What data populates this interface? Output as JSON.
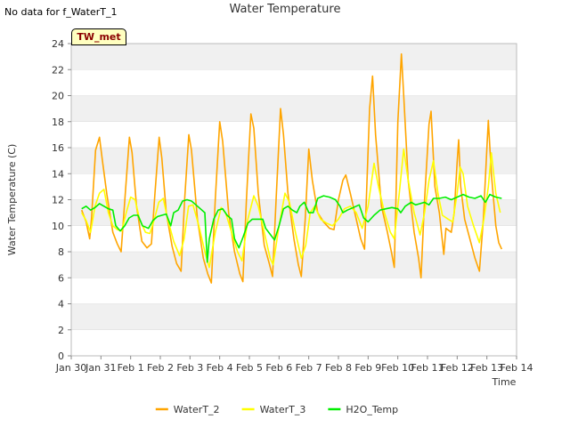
{
  "header": {
    "no_data_text": "No data for f_WaterT_1",
    "site_badge": "TW_met"
  },
  "chart_data": {
    "type": "line",
    "title": "Water Temperature",
    "xlabel": "Time",
    "ylabel": "Water Temperature (C)",
    "ylim": [
      0,
      24
    ],
    "xlim": [
      0,
      15
    ],
    "grid": "horizontal bands",
    "legend_position": "bottom-center",
    "x_ticks": [
      {
        "x": 0,
        "label": "Jan 30"
      },
      {
        "x": 1,
        "label": "Jan 31"
      },
      {
        "x": 2,
        "label": "Feb 1"
      },
      {
        "x": 3,
        "label": "Feb 2"
      },
      {
        "x": 4,
        "label": "Feb 3"
      },
      {
        "x": 5,
        "label": "Feb 4"
      },
      {
        "x": 6,
        "label": "Feb 5"
      },
      {
        "x": 7,
        "label": "Feb 6"
      },
      {
        "x": 8,
        "label": "Feb 7"
      },
      {
        "x": 9,
        "label": "Feb 8"
      },
      {
        "x": 10,
        "label": "Feb 9"
      },
      {
        "x": 11,
        "label": "Feb 10"
      },
      {
        "x": 12,
        "label": "Feb 11"
      },
      {
        "x": 13,
        "label": "Feb 12"
      },
      {
        "x": 14,
        "label": "Feb 13"
      },
      {
        "x": 15,
        "label": "Feb 14"
      }
    ],
    "y_ticks": [
      0,
      2,
      4,
      6,
      8,
      10,
      12,
      14,
      16,
      18,
      20,
      22,
      24
    ],
    "series": [
      {
        "name": "WaterT_2",
        "color": "#ffa500",
        "points": [
          [
            0.35,
            11.2
          ],
          [
            0.5,
            10.3
          ],
          [
            0.62,
            9.0
          ],
          [
            0.68,
            10.5
          ],
          [
            0.82,
            15.8
          ],
          [
            0.95,
            16.8
          ],
          [
            1.05,
            15.0
          ],
          [
            1.2,
            12.4
          ],
          [
            1.4,
            9.5
          ],
          [
            1.55,
            8.6
          ],
          [
            1.68,
            8.0
          ],
          [
            1.82,
            12.5
          ],
          [
            1.96,
            16.8
          ],
          [
            2.05,
            15.6
          ],
          [
            2.2,
            11.5
          ],
          [
            2.38,
            8.8
          ],
          [
            2.55,
            8.3
          ],
          [
            2.7,
            8.6
          ],
          [
            2.82,
            12.5
          ],
          [
            2.96,
            16.8
          ],
          [
            3.05,
            15.2
          ],
          [
            3.2,
            11.0
          ],
          [
            3.4,
            8.4
          ],
          [
            3.55,
            7.1
          ],
          [
            3.7,
            6.5
          ],
          [
            3.82,
            12.0
          ],
          [
            3.96,
            17.0
          ],
          [
            4.05,
            15.8
          ],
          [
            4.25,
            10.5
          ],
          [
            4.45,
            7.5
          ],
          [
            4.6,
            6.3
          ],
          [
            4.72,
            5.6
          ],
          [
            4.85,
            12.0
          ],
          [
            5.0,
            18.0
          ],
          [
            5.1,
            16.5
          ],
          [
            5.3,
            11.0
          ],
          [
            5.5,
            8.0
          ],
          [
            5.68,
            6.3
          ],
          [
            5.78,
            5.7
          ],
          [
            5.9,
            12.0
          ],
          [
            6.05,
            18.6
          ],
          [
            6.15,
            17.5
          ],
          [
            6.3,
            12.5
          ],
          [
            6.5,
            8.5
          ],
          [
            6.68,
            7.0
          ],
          [
            6.78,
            6.1
          ],
          [
            6.9,
            12.0
          ],
          [
            7.05,
            19.0
          ],
          [
            7.15,
            17.0
          ],
          [
            7.3,
            12.5
          ],
          [
            7.5,
            9.0
          ],
          [
            7.65,
            7.0
          ],
          [
            7.75,
            6.1
          ],
          [
            7.88,
            10.5
          ],
          [
            8.0,
            15.9
          ],
          [
            8.12,
            13.5
          ],
          [
            8.3,
            11.0
          ],
          [
            8.5,
            10.3
          ],
          [
            8.7,
            9.8
          ],
          [
            8.85,
            9.7
          ],
          [
            9.0,
            12.0
          ],
          [
            9.15,
            13.5
          ],
          [
            9.25,
            13.9
          ],
          [
            9.4,
            12.5
          ],
          [
            9.6,
            10.5
          ],
          [
            9.75,
            9.0
          ],
          [
            9.88,
            8.2
          ],
          [
            10.05,
            19.0
          ],
          [
            10.15,
            21.5
          ],
          [
            10.25,
            17.0
          ],
          [
            10.45,
            11.5
          ],
          [
            10.65,
            9.5
          ],
          [
            10.8,
            7.8
          ],
          [
            10.88,
            6.8
          ],
          [
            11.0,
            18.0
          ],
          [
            11.12,
            23.2
          ],
          [
            11.2,
            20.0
          ],
          [
            11.35,
            13.5
          ],
          [
            11.55,
            9.5
          ],
          [
            11.7,
            7.5
          ],
          [
            11.78,
            6.0
          ],
          [
            11.9,
            12.0
          ],
          [
            12.05,
            17.8
          ],
          [
            12.12,
            18.8
          ],
          [
            12.25,
            13.0
          ],
          [
            12.4,
            11.0
          ],
          [
            12.55,
            7.8
          ],
          [
            12.62,
            9.8
          ],
          [
            12.8,
            9.5
          ],
          [
            12.9,
            11.0
          ],
          [
            13.0,
            14.9
          ],
          [
            13.05,
            16.6
          ],
          [
            13.12,
            13.0
          ],
          [
            13.25,
            10.5
          ],
          [
            13.45,
            8.8
          ],
          [
            13.6,
            7.5
          ],
          [
            13.75,
            6.5
          ],
          [
            13.88,
            10.5
          ],
          [
            14.0,
            16.0
          ],
          [
            14.05,
            18.1
          ],
          [
            14.15,
            14.0
          ],
          [
            14.3,
            10.0
          ],
          [
            14.4,
            8.7
          ],
          [
            14.5,
            8.2
          ]
        ]
      },
      {
        "name": "WaterT_3",
        "color": "#ffff00",
        "points": [
          [
            0.35,
            11.0
          ],
          [
            0.5,
            10.4
          ],
          [
            0.65,
            9.5
          ],
          [
            0.8,
            11.5
          ],
          [
            0.95,
            12.5
          ],
          [
            1.1,
            12.8
          ],
          [
            1.25,
            11.0
          ],
          [
            1.4,
            10.0
          ],
          [
            1.55,
            9.7
          ],
          [
            1.7,
            9.6
          ],
          [
            1.85,
            11.0
          ],
          [
            2.0,
            12.2
          ],
          [
            2.15,
            12.0
          ],
          [
            2.3,
            10.5
          ],
          [
            2.5,
            9.5
          ],
          [
            2.65,
            9.4
          ],
          [
            2.8,
            10.5
          ],
          [
            2.95,
            11.8
          ],
          [
            3.1,
            12.1
          ],
          [
            3.25,
            10.5
          ],
          [
            3.45,
            8.8
          ],
          [
            3.65,
            7.7
          ],
          [
            3.8,
            9.0
          ],
          [
            3.95,
            11.5
          ],
          [
            4.1,
            11.6
          ],
          [
            4.3,
            10.0
          ],
          [
            4.5,
            8.0
          ],
          [
            4.65,
            6.8
          ],
          [
            4.85,
            9.5
          ],
          [
            5.05,
            11.4
          ],
          [
            5.2,
            11.0
          ],
          [
            5.4,
            9.5
          ],
          [
            5.6,
            8.0
          ],
          [
            5.75,
            7.3
          ],
          [
            5.95,
            10.5
          ],
          [
            6.15,
            12.3
          ],
          [
            6.3,
            11.5
          ],
          [
            6.5,
            9.5
          ],
          [
            6.7,
            7.5
          ],
          [
            6.8,
            7.0
          ],
          [
            7.0,
            10.0
          ],
          [
            7.2,
            12.5
          ],
          [
            7.35,
            11.8
          ],
          [
            7.55,
            9.5
          ],
          [
            7.75,
            7.5
          ],
          [
            7.9,
            8.5
          ],
          [
            8.05,
            11.0
          ],
          [
            8.2,
            11.5
          ],
          [
            8.4,
            10.5
          ],
          [
            8.6,
            10.2
          ],
          [
            8.8,
            10.0
          ],
          [
            9.0,
            10.5
          ],
          [
            9.2,
            11.3
          ],
          [
            9.4,
            11.5
          ],
          [
            9.6,
            11.0
          ],
          [
            9.8,
            9.8
          ],
          [
            10.0,
            11.5
          ],
          [
            10.2,
            14.8
          ],
          [
            10.35,
            13.0
          ],
          [
            10.55,
            11.0
          ],
          [
            10.75,
            9.5
          ],
          [
            10.88,
            9.0
          ],
          [
            11.05,
            12.5
          ],
          [
            11.2,
            15.9
          ],
          [
            11.35,
            13.5
          ],
          [
            11.55,
            11.0
          ],
          [
            11.75,
            9.3
          ],
          [
            11.9,
            11.0
          ],
          [
            12.05,
            13.5
          ],
          [
            12.2,
            15.0
          ],
          [
            12.35,
            12.5
          ],
          [
            12.5,
            10.8
          ],
          [
            12.7,
            10.5
          ],
          [
            12.85,
            10.3
          ],
          [
            13.0,
            12.5
          ],
          [
            13.1,
            14.5
          ],
          [
            13.2,
            14.0
          ],
          [
            13.35,
            11.5
          ],
          [
            13.55,
            10.0
          ],
          [
            13.75,
            8.7
          ],
          [
            13.9,
            10.5
          ],
          [
            14.05,
            13.0
          ],
          [
            14.15,
            15.6
          ],
          [
            14.3,
            12.5
          ],
          [
            14.45,
            11.0
          ]
        ]
      },
      {
        "name": "H2O_Temp",
        "color": "#00ee00",
        "points": [
          [
            0.35,
            11.3
          ],
          [
            0.5,
            11.5
          ],
          [
            0.65,
            11.2
          ],
          [
            0.8,
            11.4
          ],
          [
            0.95,
            11.7
          ],
          [
            1.1,
            11.5
          ],
          [
            1.25,
            11.3
          ],
          [
            1.4,
            11.2
          ],
          [
            1.5,
            10.0
          ],
          [
            1.65,
            9.6
          ],
          [
            1.8,
            10.0
          ],
          [
            1.95,
            10.6
          ],
          [
            2.1,
            10.8
          ],
          [
            2.25,
            10.8
          ],
          [
            2.4,
            10.0
          ],
          [
            2.6,
            9.8
          ],
          [
            2.75,
            10.4
          ],
          [
            2.9,
            10.7
          ],
          [
            3.05,
            10.8
          ],
          [
            3.2,
            10.9
          ],
          [
            3.35,
            10.0
          ],
          [
            3.45,
            11.0
          ],
          [
            3.6,
            11.2
          ],
          [
            3.75,
            11.9
          ],
          [
            3.9,
            12.0
          ],
          [
            4.05,
            11.9
          ],
          [
            4.2,
            11.6
          ],
          [
            4.35,
            11.3
          ],
          [
            4.5,
            11.0
          ],
          [
            4.58,
            7.2
          ],
          [
            4.65,
            9.0
          ],
          [
            4.8,
            10.5
          ],
          [
            4.95,
            11.2
          ],
          [
            5.1,
            11.3
          ],
          [
            5.25,
            10.8
          ],
          [
            5.4,
            10.5
          ],
          [
            5.5,
            9.0
          ],
          [
            5.65,
            8.3
          ],
          [
            5.8,
            9.2
          ],
          [
            5.95,
            10.2
          ],
          [
            6.1,
            10.5
          ],
          [
            6.3,
            10.5
          ],
          [
            6.45,
            10.5
          ],
          [
            6.55,
            9.8
          ],
          [
            6.75,
            9.2
          ],
          [
            6.85,
            8.9
          ],
          [
            7.0,
            10.0
          ],
          [
            7.15,
            11.3
          ],
          [
            7.3,
            11.5
          ],
          [
            7.45,
            11.2
          ],
          [
            7.6,
            11.0
          ],
          [
            7.7,
            11.5
          ],
          [
            7.85,
            11.8
          ],
          [
            8.0,
            11.0
          ],
          [
            8.15,
            11.0
          ],
          [
            8.3,
            12.1
          ],
          [
            8.5,
            12.3
          ],
          [
            8.7,
            12.2
          ],
          [
            8.9,
            12.0
          ],
          [
            9.05,
            11.5
          ],
          [
            9.15,
            11.0
          ],
          [
            9.3,
            11.2
          ],
          [
            9.5,
            11.4
          ],
          [
            9.7,
            11.6
          ],
          [
            9.85,
            10.6
          ],
          [
            10.0,
            10.3
          ],
          [
            10.2,
            10.8
          ],
          [
            10.4,
            11.2
          ],
          [
            10.6,
            11.3
          ],
          [
            10.8,
            11.4
          ],
          [
            11.0,
            11.3
          ],
          [
            11.1,
            11.0
          ],
          [
            11.25,
            11.5
          ],
          [
            11.45,
            11.8
          ],
          [
            11.6,
            11.6
          ],
          [
            11.75,
            11.7
          ],
          [
            11.9,
            11.8
          ],
          [
            12.05,
            11.6
          ],
          [
            12.2,
            12.1
          ],
          [
            12.4,
            12.1
          ],
          [
            12.6,
            12.2
          ],
          [
            12.8,
            12.0
          ],
          [
            13.0,
            12.2
          ],
          [
            13.2,
            12.4
          ],
          [
            13.4,
            12.2
          ],
          [
            13.6,
            12.1
          ],
          [
            13.8,
            12.3
          ],
          [
            13.95,
            11.8
          ],
          [
            14.1,
            12.4
          ],
          [
            14.3,
            12.2
          ],
          [
            14.5,
            12.1
          ]
        ]
      }
    ]
  }
}
